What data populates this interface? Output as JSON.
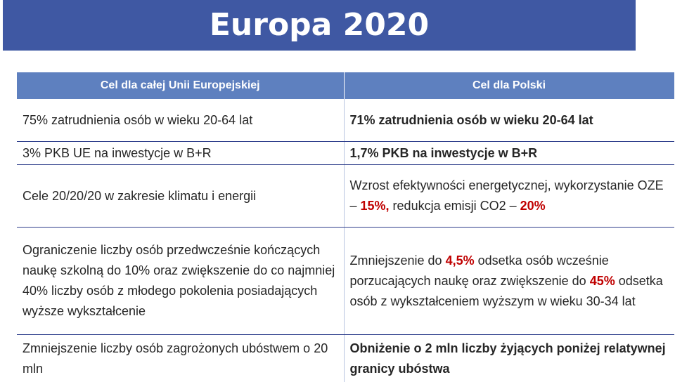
{
  "title": "Europa 2020",
  "headers": {
    "eu": "Cel dla całej Unii Europejskiej",
    "pl": "Cel dla Polski"
  },
  "rows": [
    {
      "eu": "75% zatrudnienia osób w wieku 20-64 lat",
      "pl": "71% zatrudnienia osób w wieku 20-64 lat"
    },
    {
      "eu": "3% PKB UE na inwestycje w B+R",
      "pl": "1,7% PKB na inwestycje w B+R"
    },
    {
      "eu": "Cele 20/20/20 w zakresie klimatu i energii",
      "pl_a": "Wzrost efektywności energetycznej, wykorzystanie OZE – ",
      "pl_b": "15%,",
      "pl_c": " redukcja emisji CO2 – ",
      "pl_d": "20%"
    },
    {
      "eu": "Ograniczenie liczby osób przedwcześnie kończących naukę szkolną do 10% oraz zwiększenie do co najmniej 40% liczby osób z młodego pokolenia posiadających wyższe wykształcenie",
      "pl_a": "Zmniejszenie do ",
      "pl_b": "4,5%",
      "pl_c": " odsetka osób wcześnie porzucających naukę oraz zwiększenie do ",
      "pl_d": "45%",
      "pl_e": " odsetka osób z wykształceniem wyższym w wieku 30-34 lat"
    },
    {
      "eu": "Zmniejszenie liczby osób zagrożonych ubóstwem o 20 mln",
      "pl": "Obniżenie o 2 mln liczby żyjących poniżej relatywnej granicy ubóstwa"
    }
  ],
  "colors": {
    "title_bg": "#3f58a3",
    "header_bg": "#5e80bf",
    "accent_red": "#c00000",
    "accent_blue": "#1f2a6b"
  }
}
